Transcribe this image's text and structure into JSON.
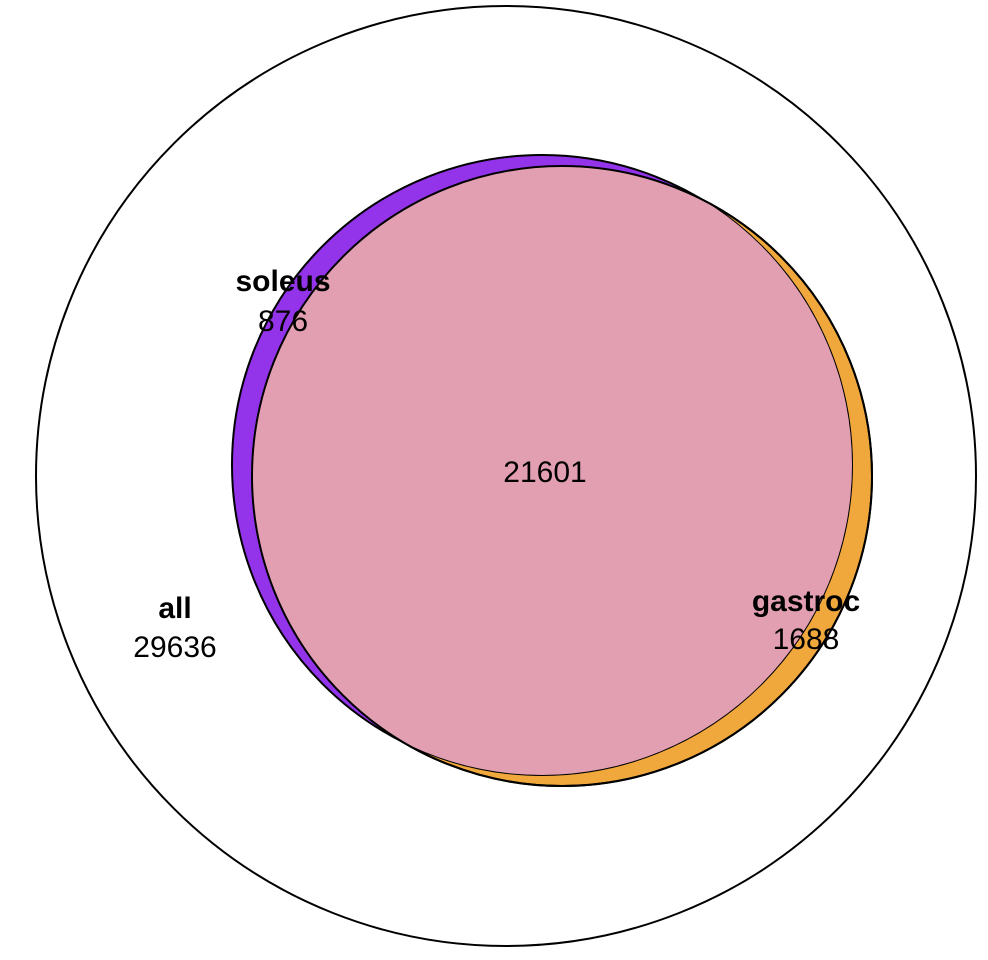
{
  "diagram": {
    "type": "euler-venn",
    "sets": [
      {
        "id": "all",
        "name": "all",
        "count": "29636",
        "fill": "#ffffff"
      },
      {
        "id": "gastroc",
        "name": "gastroc",
        "count": "1688",
        "fill": "#f0a83c"
      },
      {
        "id": "soleus",
        "name": "soleus",
        "count": "876",
        "fill": "#9333ea"
      }
    ],
    "intersection": {
      "sets": [
        "soleus",
        "gastroc"
      ],
      "count": "21601",
      "fill": "#e39fb2"
    },
    "outline_color": "#000000"
  }
}
